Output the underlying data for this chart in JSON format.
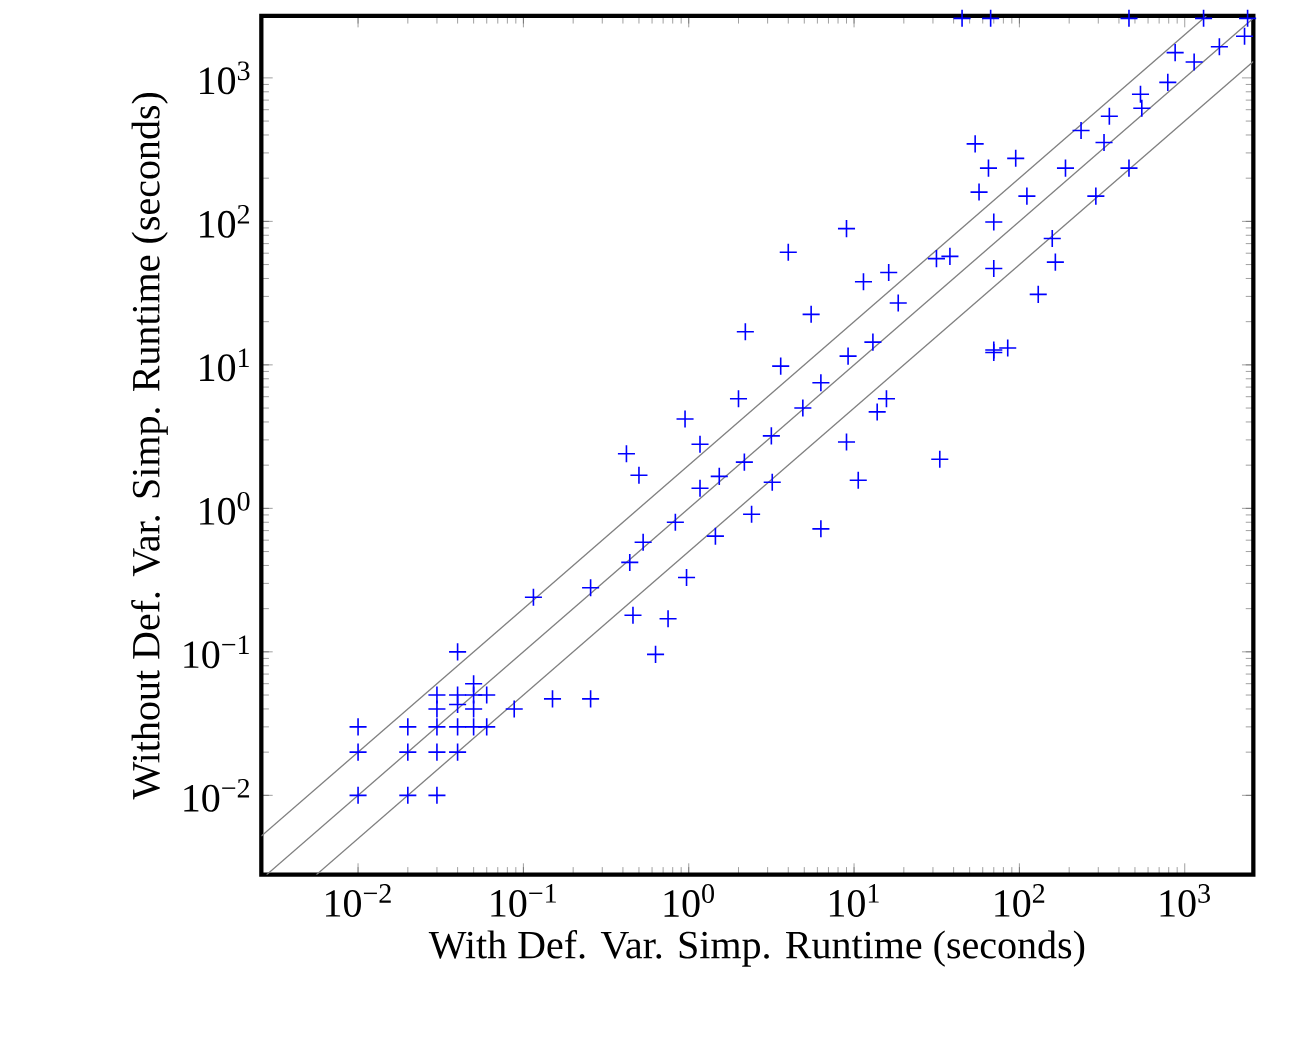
{
  "chart_data": {
    "type": "scatter",
    "xlabel": "With Def. Var. Simp. Runtime (seconds)",
    "ylabel": "Without Def. Var. Simp. Runtime (seconds)",
    "log": "xy",
    "marker": "cross",
    "xlim": [
      0.0026,
      2600
    ],
    "ylim": [
      0.0028,
      2700
    ],
    "xticks": [
      {
        "value": 0.01,
        "label": "10$^{−2}$"
      },
      {
        "value": 0.1,
        "label": "10$^{−1}$"
      },
      {
        "value": 1,
        "label": "10$^{0}$"
      },
      {
        "value": 10,
        "label": "10$^{1}$"
      },
      {
        "value": 100,
        "label": "10$^{2}$"
      },
      {
        "value": 1000,
        "label": "10$^{3}$"
      }
    ],
    "yticks": [
      {
        "value": 0.01,
        "label": "10$^{−2}$"
      },
      {
        "value": 0.1,
        "label": "10$^{−1}$"
      },
      {
        "value": 1,
        "label": "10$^{0}$"
      },
      {
        "value": 10,
        "label": "10$^{1}$"
      },
      {
        "value": 100,
        "label": "10$^{2}$"
      },
      {
        "value": 1000,
        "label": "10$^{3}$"
      }
    ],
    "series": [
      {
        "color": "#0000ff",
        "x": [
          0.01,
          0.01,
          0.01,
          0.02,
          0.02,
          0.02,
          0.03,
          0.03,
          0.03,
          0.03,
          0.03,
          0.04,
          0.04,
          0.04,
          0.04,
          0.04,
          0.05,
          0.05,
          0.05,
          0.05,
          0.06,
          0.06,
          0.088,
          0.15,
          0.255,
          0.63,
          0.75,
          0.46,
          0.115,
          0.255,
          0.42,
          0.5,
          0.95,
          1.17,
          2.0,
          3.6,
          33,
          6.3,
          10.6,
          9,
          13.8,
          15.7,
          70,
          85,
          0.97,
          2.4,
          3.2,
          1.45,
          0.44,
          0.53,
          0.83,
          1.17,
          1.53,
          2.17,
          3.16,
          4.9,
          6.3,
          9.2,
          13,
          45,
          67,
          460,
          1300,
          2400,
          9,
          4.0,
          2.2,
          5.5,
          54,
          65,
          95,
          57,
          460,
          290,
          130,
          165,
          158,
          70,
          236,
          350,
          540,
          875,
          11.4,
          16.2,
          31.5,
          70,
          18.5,
          38,
          70,
          111,
          190,
          325,
          550,
          790,
          1140,
          1620,
          2300
        ],
        "values": [
          0.03,
          0.02,
          0.01,
          0.03,
          0.02,
          0.01,
          0.05,
          0.04,
          0.03,
          0.02,
          0.01,
          0.1,
          0.05,
          0.043,
          0.03,
          0.02,
          0.06,
          0.05,
          0.04,
          0.03,
          0.03,
          0.05,
          0.04,
          0.047,
          0.047,
          0.096,
          0.17,
          0.18,
          0.24,
          0.28,
          2.4,
          1.7,
          4.2,
          2.8,
          5.8,
          9.8,
          2.2,
          0.72,
          1.57,
          2.9,
          4.7,
          5.8,
          12.2,
          13.1,
          0.33,
          0.91,
          1.52,
          0.64,
          0.42,
          0.58,
          0.8,
          1.38,
          1.67,
          2.1,
          3.2,
          5.0,
          7.5,
          11.5,
          14.4,
          2600,
          2600,
          2600,
          2600,
          2600,
          89,
          61,
          17,
          22.5,
          347,
          235,
          275,
          160,
          235,
          150,
          31,
          52,
          76,
          12.7,
          430,
          540,
          770,
          1500,
          38,
          44,
          55,
          47,
          27,
          57,
          99,
          150,
          235,
          355,
          615,
          930,
          1290,
          1650,
          1950
        ]
      },
      {
        "type": "line",
        "color": "#808080",
        "marker": "none",
        "x": [
          0.0026,
          1350
        ],
        "values": [
          0.0052,
          2700
        ]
      },
      {
        "type": "line",
        "color": "#808080",
        "marker": "none",
        "x": [
          0.0028,
          2600
        ],
        "values": [
          0.0028,
          2600
        ]
      },
      {
        "type": "line",
        "color": "#808080",
        "marker": "none",
        "x": [
          0.0056,
          2600
        ],
        "values": [
          0.0028,
          1300
        ]
      }
    ]
  }
}
